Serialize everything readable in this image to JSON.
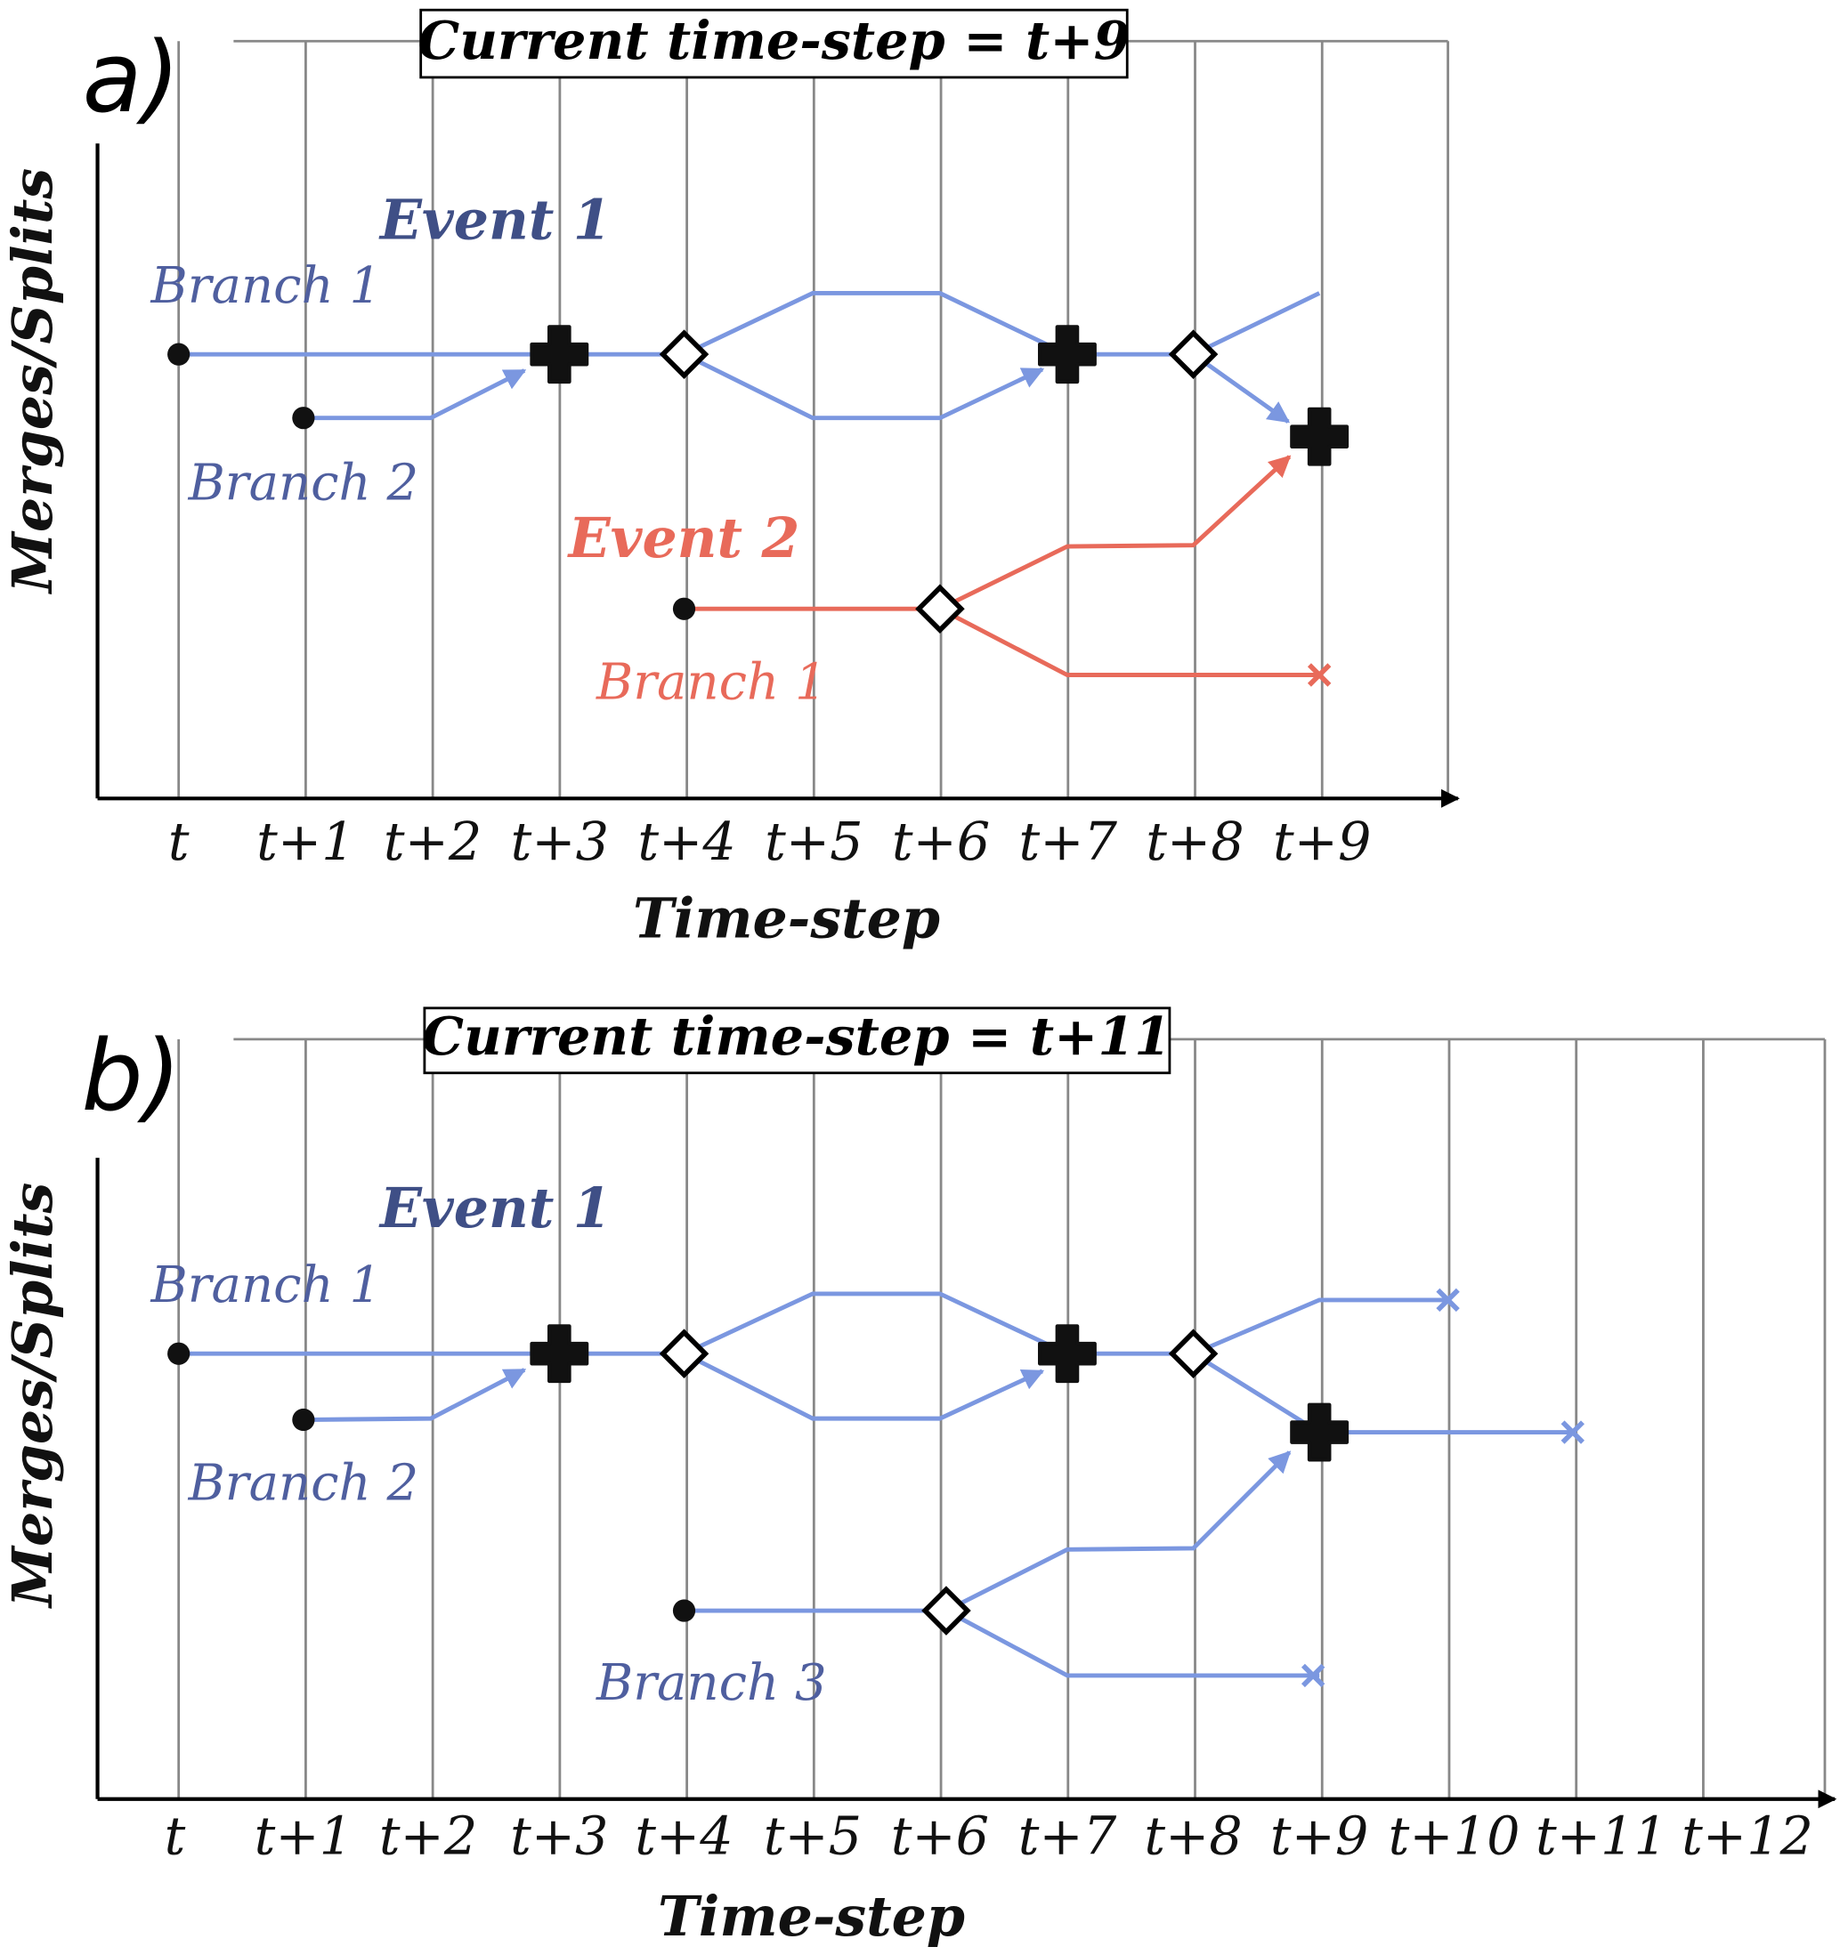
{
  "panels": [
    {
      "label": "a)",
      "title": "Current time-step = t+9",
      "y_axis_label": "Merges/Splits",
      "x_axis_label": "Time-step",
      "ticks": [
        "t",
        "t+1",
        "t+2",
        "t+3",
        "t+4",
        "t+5",
        "t+6",
        "t+7",
        "t+8",
        "t+9"
      ],
      "annotations": [
        "Event 1",
        "Branch 1",
        "Branch 2",
        "Event 2",
        "Branch 1"
      ]
    },
    {
      "label": "b)",
      "title": "Current time-step = t+11",
      "y_axis_label": "Merges/Splits",
      "x_axis_label": "Time-step",
      "ticks": [
        "t",
        "t+1",
        "t+2",
        "t+3",
        "t+4",
        "t+5",
        "t+6",
        "t+7",
        "t+8",
        "t+9",
        "t+10",
        "t+11",
        "t+12"
      ],
      "annotations": [
        "Event 1",
        "Branch 1",
        "Branch 2",
        "Branch 3"
      ]
    }
  ]
}
